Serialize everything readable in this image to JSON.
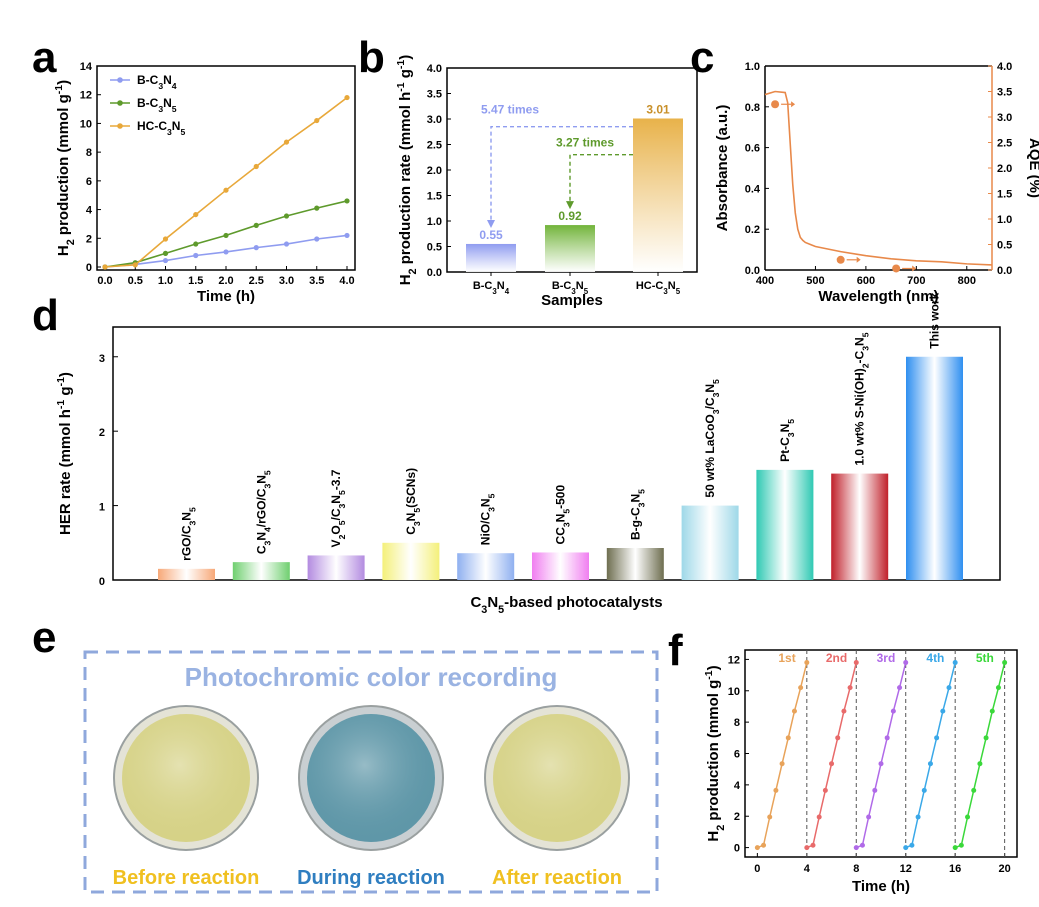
{
  "chart_data": [
    {
      "panel": "a",
      "type": "line",
      "xlabel": "Time (h)",
      "ylabel": "H2 production (mmol g-1)",
      "x": [
        0,
        0.5,
        1.0,
        1.5,
        2.0,
        2.5,
        3.0,
        3.5,
        4.0
      ],
      "xticks": [
        "0.0",
        "0.5",
        "1.0",
        "1.5",
        "2.0",
        "2.5",
        "3.0",
        "3.5",
        "4.0"
      ],
      "yticks": [
        "0",
        "2",
        "4",
        "6",
        "8",
        "10",
        "12",
        "14"
      ],
      "xlim": [
        0,
        4
      ],
      "ylim": [
        0,
        14
      ],
      "legend": "top-left",
      "series": [
        {
          "name": "B-C3N4",
          "color": "#8f9cf0",
          "values": [
            0,
            0.18,
            0.45,
            0.8,
            1.05,
            1.35,
            1.6,
            1.95,
            2.2
          ]
        },
        {
          "name": "B-C3N5",
          "color": "#5e9a2c",
          "values": [
            0,
            0.3,
            0.95,
            1.6,
            2.2,
            2.9,
            3.55,
            4.1,
            4.6
          ]
        },
        {
          "name": "HC-C3N5",
          "color": "#e8a83a",
          "values": [
            0,
            0.15,
            1.95,
            3.65,
            5.35,
            7.0,
            8.7,
            10.2,
            11.8
          ]
        }
      ]
    },
    {
      "panel": "b",
      "type": "bar",
      "xlabel": "Samples",
      "ylabel": "H2 production rate (mmol h-1 g-1)",
      "categories": [
        "B-C3N4",
        "B-C3N5",
        "HC-C3N5"
      ],
      "values": [
        0.55,
        0.92,
        3.01
      ],
      "value_labels": [
        "0.55",
        "0.92",
        "3.01"
      ],
      "colors": [
        "#8f9cf0",
        "#72b43a",
        "#e8b24a"
      ],
      "yticks": [
        "0.0",
        "0.5",
        "1.0",
        "1.5",
        "2.0",
        "2.5",
        "3.0",
        "3.5",
        "4.0"
      ],
      "ylim": [
        0,
        4
      ],
      "annotations": [
        {
          "text": "5.47 times",
          "color": "#8f9cf0"
        },
        {
          "text": "3.27 times",
          "color": "#5e9a2c"
        }
      ]
    },
    {
      "panel": "c",
      "type": "line",
      "xlabel": "Wavelength (nm)",
      "ylabel": "Absorbance (a.u.)",
      "ylabel_right": "AQE (%)",
      "xticks": [
        "400",
        "500",
        "600",
        "700",
        "800"
      ],
      "yticks": [
        "0.0",
        "0.2",
        "0.4",
        "0.6",
        "0.8",
        "1.0"
      ],
      "yticks_right": [
        "0.0",
        "0.5",
        "1.0",
        "1.5",
        "2.0",
        "2.5",
        "3.0",
        "3.5",
        "4.0"
      ],
      "xlim": [
        400,
        850
      ],
      "ylim": [
        0,
        1.0
      ],
      "ylim_right": [
        0,
        4.0
      ],
      "color": "#e8894a",
      "series": [
        {
          "name": "Absorbance",
          "x": [
            400,
            420,
            440,
            445,
            450,
            455,
            460,
            465,
            470,
            475,
            480,
            490,
            500,
            550,
            600,
            650,
            700,
            750,
            800,
            850
          ],
          "values": [
            0.86,
            0.875,
            0.87,
            0.82,
            0.62,
            0.42,
            0.28,
            0.2,
            0.16,
            0.145,
            0.135,
            0.125,
            0.115,
            0.09,
            0.07,
            0.055,
            0.045,
            0.04,
            0.03,
            0.025
          ]
        },
        {
          "name": "AQE",
          "x": [
            420,
            550,
            660
          ],
          "values": [
            3.25,
            0.2,
            0.03
          ]
        }
      ]
    },
    {
      "panel": "d",
      "type": "bar",
      "xlabel": "C3N5-based  photocatalysts",
      "ylabel": "HER rate (mmol h-1 g-1)",
      "yticks": [
        "0",
        "1",
        "2",
        "3"
      ],
      "ylim": [
        0,
        3.4
      ],
      "categories": [
        "rGO/C3N5",
        "C3N4/rGO/C3N5",
        "V2O5/C3N5-3.7",
        "C3N5(SCNs)",
        "NiO/C3N5",
        "CC3N5-500",
        "B-g-C3N5",
        "50 wt% LaCoO3/C3N5",
        "Pt-C3N5",
        "1.0 wt% S-Ni(OH)2-C3N5",
        "This work"
      ],
      "values": [
        0.15,
        0.24,
        0.33,
        0.5,
        0.36,
        0.37,
        0.43,
        1.0,
        1.48,
        1.43,
        3.0
      ],
      "colors": [
        "#f7a878",
        "#6fcf6f",
        "#b38be0",
        "#f4f07a",
        "#8fb0f0",
        "#f07ef0",
        "#6e6e50",
        "#9ed8e8",
        "#2fc9b3",
        "#c0202a",
        "#2f8ff0"
      ]
    },
    {
      "panel": "f",
      "type": "line",
      "xlabel": "Time (h)",
      "ylabel": "H2 production (mmol g-1)",
      "xticks": [
        "0",
        "4",
        "8",
        "12",
        "16",
        "20"
      ],
      "yticks": [
        "0",
        "2",
        "4",
        "6",
        "8",
        "10",
        "12"
      ],
      "xlim": [
        -1,
        21
      ],
      "ylim": [
        -0.6,
        12.6
      ],
      "cycle_labels": [
        "1st",
        "2nd",
        "3rd",
        "4th",
        "5th"
      ],
      "cycle_colors": [
        "#e8a35a",
        "#e86a6a",
        "#b06ae8",
        "#3aa8e8",
        "#3ad83a"
      ],
      "cycle_x": [
        0,
        0.5,
        1.0,
        1.5,
        2.0,
        2.5,
        3.0,
        3.5,
        4.0
      ],
      "cycle_values": [
        0,
        0.15,
        1.95,
        3.65,
        5.35,
        7.0,
        8.7,
        10.2,
        11.8
      ]
    }
  ],
  "panel_e": {
    "title": "Photochromic color recording",
    "labels": [
      "Before reaction",
      "During reaction",
      "After reaction"
    ],
    "label_colors": [
      "#f0c020",
      "#2f7ec0",
      "#f0c020"
    ],
    "dish_colors": [
      "#d6d287",
      "#5f97a8",
      "#d6d287"
    ]
  },
  "panel_letters": [
    "a",
    "b",
    "c",
    "d",
    "e",
    "f"
  ]
}
